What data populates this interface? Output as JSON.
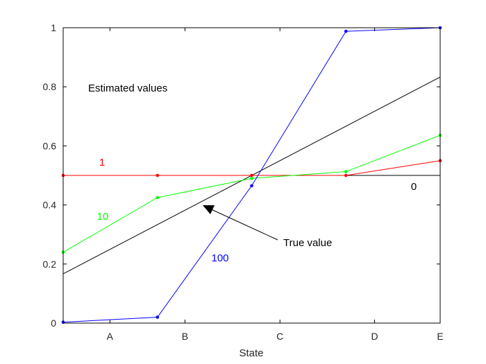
{
  "chart_data": {
    "type": "line",
    "xlabel": "State",
    "ylabel": "",
    "title": "",
    "xlim": [
      0,
      6
    ],
    "ylim": [
      0,
      1
    ],
    "x_ticks": [
      {
        "x": 0.5,
        "label": "A"
      },
      {
        "x": 1.3,
        "label": "B"
      },
      {
        "x": 2.3,
        "label": "C"
      },
      {
        "x": 3.3,
        "label": "D"
      },
      {
        "x": 4.0,
        "label": "E"
      }
    ],
    "y_ticks": [
      0,
      0.2,
      0.4,
      0.6,
      0.8,
      1
    ],
    "x_domain": [
      0,
      4
    ],
    "series": [
      {
        "name": "0",
        "color": "#000000",
        "markers": false,
        "x": [
          0,
          4
        ],
        "y": [
          0.5,
          0.5
        ]
      },
      {
        "name": "True value",
        "color": "#000000",
        "markers": false,
        "x": [
          0,
          4
        ],
        "y": [
          0.167,
          0.833
        ]
      },
      {
        "name": "1",
        "color": "#ff0000",
        "markers": true,
        "x": [
          0,
          1,
          2,
          3,
          4
        ],
        "y": [
          0.5,
          0.5,
          0.5,
          0.5,
          0.55
        ]
      },
      {
        "name": "10",
        "color": "#00ff00",
        "markers": true,
        "x": [
          0,
          1,
          2,
          3,
          4
        ],
        "y": [
          0.24,
          0.425,
          0.49,
          0.513,
          0.636
        ]
      },
      {
        "name": "100",
        "color": "#0000ff",
        "markers": true,
        "x": [
          0,
          1,
          2,
          3,
          4
        ],
        "y": [
          0.003,
          0.02,
          0.465,
          0.988,
          1.0
        ]
      }
    ],
    "annotations": [
      {
        "text": "Estimated values",
        "color": "#000000"
      },
      {
        "text": "1",
        "color": "#ff0000"
      },
      {
        "text": "10",
        "color": "#00ff00"
      },
      {
        "text": "100",
        "color": "#0000ff"
      },
      {
        "text": "0",
        "color": "#000000"
      },
      {
        "text": "True value",
        "color": "#000000"
      }
    ]
  }
}
